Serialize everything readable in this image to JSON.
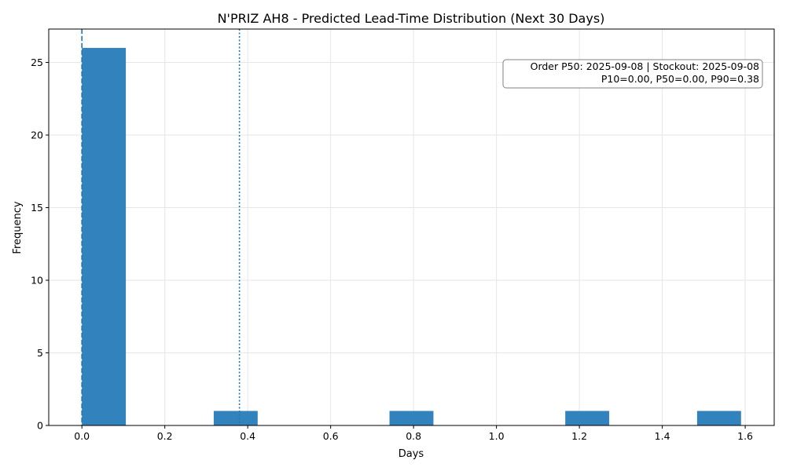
{
  "chart_data": {
    "type": "bar",
    "title": "N'PRIZ AH8 - Predicted Lead-Time Distribution (Next 30 Days)",
    "xlabel": "Days",
    "ylabel": "Frequency",
    "xlim": [
      -0.08,
      1.67
    ],
    "ylim": [
      0,
      27.3
    ],
    "xticks": [
      0.0,
      0.2,
      0.4,
      0.6,
      0.8,
      1.0,
      1.2,
      1.4,
      1.6
    ],
    "xtick_labels": [
      "0.0",
      "0.2",
      "0.4",
      "0.6",
      "0.8",
      "1.0",
      "1.2",
      "1.4",
      "1.6"
    ],
    "yticks": [
      0,
      5,
      10,
      15,
      20,
      25
    ],
    "ytick_labels": [
      "0",
      "5",
      "10",
      "15",
      "20",
      "25"
    ],
    "grid": true,
    "bar_color": "#3282bd",
    "line_color": "#1f77b4",
    "bins": [
      {
        "start": 0.0,
        "end": 0.106,
        "count": 26
      },
      {
        "start": 0.318,
        "end": 0.424,
        "count": 1
      },
      {
        "start": 0.742,
        "end": 0.848,
        "count": 1
      },
      {
        "start": 1.166,
        "end": 1.272,
        "count": 1
      },
      {
        "start": 1.484,
        "end": 1.59,
        "count": 1
      }
    ],
    "reference_lines": [
      {
        "name": "p50",
        "x": 0.0,
        "style": "dashed"
      },
      {
        "name": "p90",
        "x": 0.38,
        "style": "dotted"
      }
    ],
    "annotation": {
      "line1": "Order P50: 2025-09-08 | Stockout: 2025-09-08",
      "line2": "P10=0.00, P50=0.00, P90=0.38",
      "placement": "top-right"
    }
  }
}
